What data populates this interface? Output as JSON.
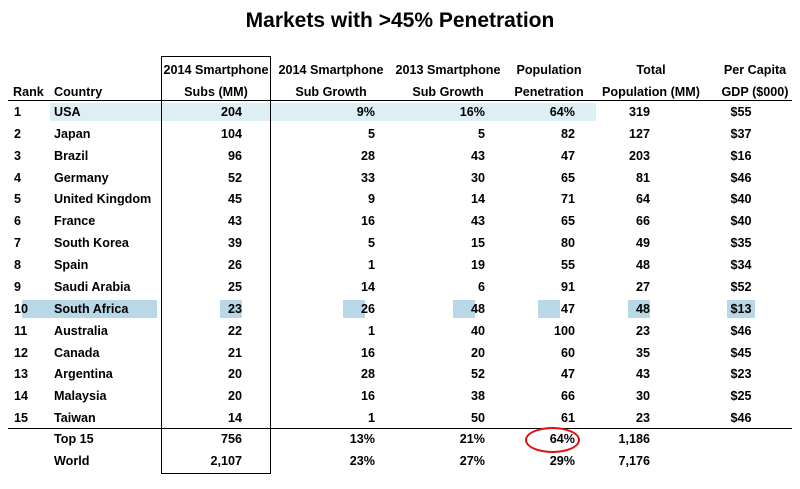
{
  "title": "Markets with >45% Penetration",
  "headers": {
    "rank": "Rank",
    "country": "Country",
    "subs2014": [
      "2014 Smartphone",
      "Subs (MM)"
    ],
    "growth2014": [
      "2014 Smartphone",
      "Sub Growth"
    ],
    "growth2013": [
      "2013 Smartphone",
      "Sub Growth"
    ],
    "penetration": [
      "Population",
      "Penetration"
    ],
    "population": [
      "Total",
      "Population (MM)"
    ],
    "gdp": [
      "Per Capita",
      "GDP ($000)"
    ]
  },
  "rows": [
    {
      "rank": "1",
      "country": "USA",
      "subs": "204",
      "g14": "9%",
      "g13": "16%",
      "pen": "64%",
      "pop": "319",
      "gdp": "$55"
    },
    {
      "rank": "2",
      "country": "Japan",
      "subs": "104",
      "g14": "5",
      "g13": "5",
      "pen": "82",
      "pop": "127",
      "gdp": "$37"
    },
    {
      "rank": "3",
      "country": "Brazil",
      "subs": "96",
      "g14": "28",
      "g13": "43",
      "pen": "47",
      "pop": "203",
      "gdp": "$16"
    },
    {
      "rank": "4",
      "country": "Germany",
      "subs": "52",
      "g14": "33",
      "g13": "30",
      "pen": "65",
      "pop": "81",
      "gdp": "$46"
    },
    {
      "rank": "5",
      "country": "United Kingdom",
      "subs": "45",
      "g14": "9",
      "g13": "14",
      "pen": "71",
      "pop": "64",
      "gdp": "$40"
    },
    {
      "rank": "6",
      "country": "France",
      "subs": "43",
      "g14": "16",
      "g13": "43",
      "pen": "65",
      "pop": "66",
      "gdp": "$40"
    },
    {
      "rank": "7",
      "country": "South Korea",
      "subs": "39",
      "g14": "5",
      "g13": "15",
      "pen": "80",
      "pop": "49",
      "gdp": "$35"
    },
    {
      "rank": "8",
      "country": "Spain",
      "subs": "26",
      "g14": "1",
      "g13": "19",
      "pen": "55",
      "pop": "48",
      "gdp": "$34"
    },
    {
      "rank": "9",
      "country": "Saudi Arabia",
      "subs": "25",
      "g14": "14",
      "g13": "6",
      "pen": "91",
      "pop": "27",
      "gdp": "$52"
    },
    {
      "rank": "10",
      "country": "South Africa",
      "subs": "23",
      "g14": "26",
      "g13": "48",
      "pen": "47",
      "pop": "48",
      "gdp": "$13"
    },
    {
      "rank": "11",
      "country": "Australia",
      "subs": "22",
      "g14": "1",
      "g13": "40",
      "pen": "100",
      "pop": "23",
      "gdp": "$46"
    },
    {
      "rank": "12",
      "country": "Canada",
      "subs": "21",
      "g14": "16",
      "g13": "20",
      "pen": "60",
      "pop": "35",
      "gdp": "$45"
    },
    {
      "rank": "13",
      "country": "Argentina",
      "subs": "20",
      "g14": "28",
      "g13": "52",
      "pen": "47",
      "pop": "43",
      "gdp": "$23"
    },
    {
      "rank": "14",
      "country": "Malaysia",
      "subs": "20",
      "g14": "16",
      "g13": "38",
      "pen": "66",
      "pop": "30",
      "gdp": "$25"
    },
    {
      "rank": "15",
      "country": "Taiwan",
      "subs": "14",
      "g14": "1",
      "g13": "50",
      "pen": "61",
      "pop": "23",
      "gdp": "$46"
    }
  ],
  "totals": [
    {
      "country": "Top 15",
      "subs": "756",
      "g14": "13%",
      "g13": "21%",
      "pen": "64%",
      "pop": "1,186"
    },
    {
      "country": "World",
      "subs": "2,107",
      "g14": "23%",
      "g13": "27%",
      "pen": "29%",
      "pop": "7,176"
    }
  ],
  "colors": {
    "highlight_light": "#ddeef4",
    "highlight_dark": "#b8d7e7",
    "circle": "#e01010"
  },
  "chart_data": {
    "type": "table",
    "title": "Markets with >45% Penetration",
    "columns": [
      "Rank",
      "Country",
      "2014 Smartphone Subs (MM)",
      "2014 Smartphone Sub Growth",
      "2013 Smartphone Sub Growth",
      "Population Penetration",
      "Total Population (MM)",
      "Per Capita GDP ($000)"
    ],
    "highlighted_rows": [
      "USA",
      "South Africa"
    ],
    "circled_value": "Top 15 Population Penetration 64%"
  }
}
